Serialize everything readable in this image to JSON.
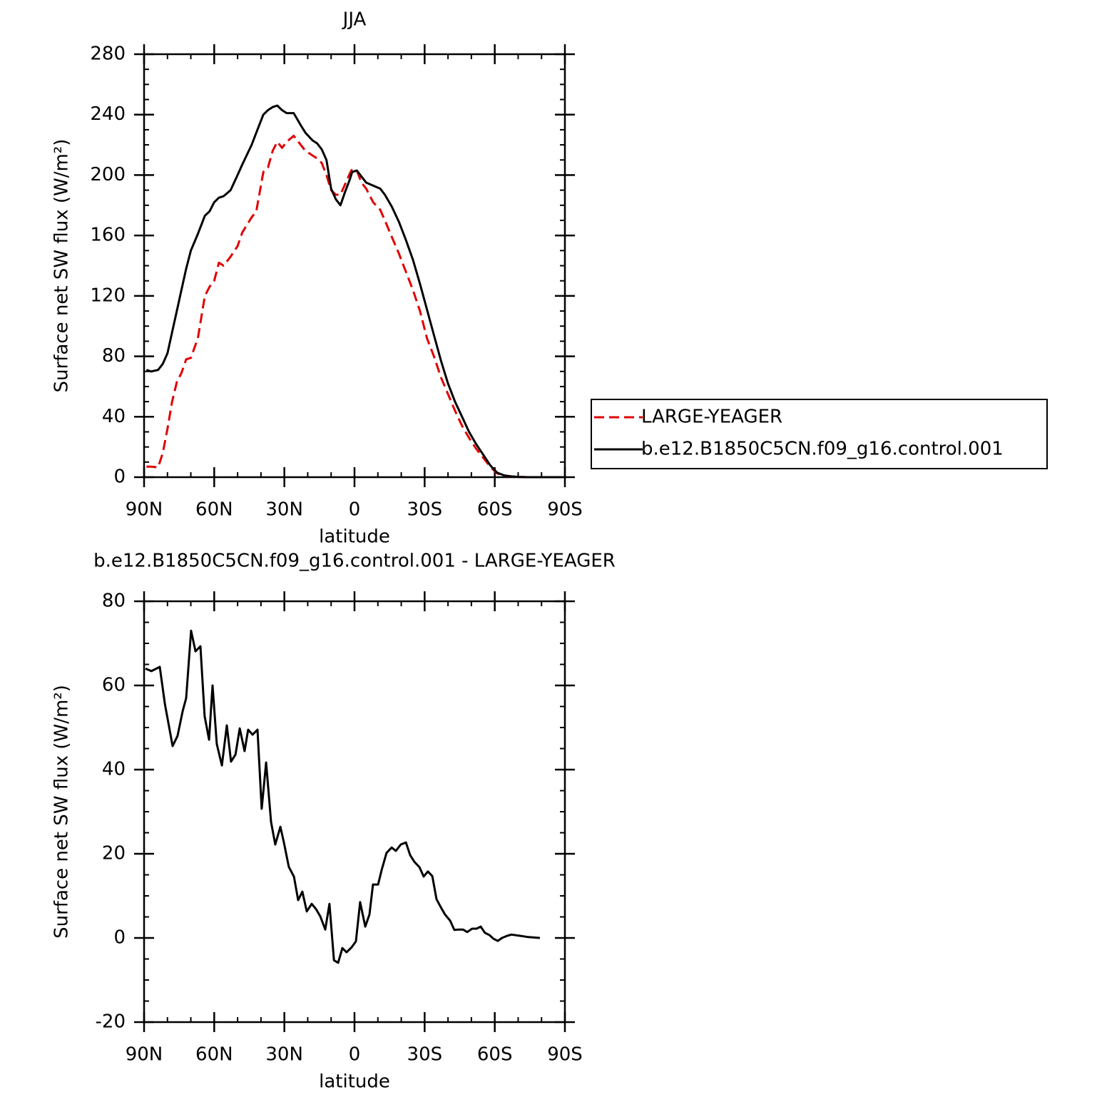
{
  "chart_data": [
    {
      "type": "line",
      "title": "JJA",
      "xlabel": "latitude",
      "ylabel": "Surface net SW flux (W/m²)",
      "xlim": [
        90,
        -90
      ],
      "xticks": [
        {
          "value": 90,
          "label": "90N"
        },
        {
          "value": 60,
          "label": "60N"
        },
        {
          "value": 30,
          "label": "30N"
        },
        0,
        {
          "value": -30,
          "label": "30S"
        },
        {
          "value": -60,
          "label": "60S"
        },
        {
          "value": -90,
          "label": "90S"
        }
      ],
      "xminorticks": [
        80,
        70,
        50,
        40,
        20,
        10,
        -10,
        -20,
        -40,
        -50,
        -70,
        -80
      ],
      "ylim": [
        0,
        280
      ],
      "yticks": [
        0,
        40,
        80,
        120,
        160,
        200,
        240,
        280
      ],
      "yminorticks": [
        10,
        20,
        30,
        50,
        60,
        70,
        90,
        100,
        110,
        130,
        140,
        150,
        170,
        180,
        190,
        210,
        220,
        230,
        250,
        260,
        270
      ],
      "legend": "right",
      "x": [
        89,
        87,
        84,
        82,
        80,
        78,
        76,
        74,
        72,
        70,
        67,
        64,
        62,
        60,
        58,
        56,
        53,
        50,
        48,
        44,
        42,
        39,
        37,
        35,
        33,
        31,
        29,
        26,
        23,
        21,
        18,
        16,
        14,
        12,
        10,
        8,
        6,
        4,
        2,
        1,
        -1,
        -3,
        -5,
        -8,
        -11,
        -13,
        -16,
        -19,
        -22,
        -25,
        -28,
        -31,
        -34,
        -37,
        -40,
        -43,
        -46,
        -49,
        -52,
        -55,
        -58,
        -61,
        -64,
        -67,
        -70,
        -74,
        -80,
        -89
      ],
      "series": [
        {
          "name": "LARGE-YEAGER",
          "color": "#e00000",
          "line_style": "dashed",
          "values": [
            7,
            7,
            6.5,
            16,
            32,
            50,
            63,
            69,
            78,
            79,
            92,
            120,
            126,
            130,
            142,
            140,
            146,
            153,
            162,
            172,
            176,
            202,
            205,
            216,
            222,
            218,
            222,
            226,
            220,
            216,
            213,
            211,
            208,
            200,
            190,
            187,
            187,
            194,
            201,
            204,
            203,
            195,
            191,
            182,
            177,
            170,
            159,
            148,
            136,
            124,
            110,
            92,
            80,
            66,
            55,
            44,
            34,
            26,
            19,
            13,
            7,
            2.5,
            1,
            0.5,
            0.2,
            0,
            0,
            0
          ]
        },
        {
          "name": "b.e12.B1850C5CN.f09_g16.control.001",
          "color": "#000000",
          "line_style": "solid",
          "values": [
            71,
            70,
            71,
            75,
            82,
            96,
            110,
            124,
            138,
            150,
            161,
            173,
            176,
            182,
            185,
            186,
            190,
            200,
            207,
            220,
            228,
            240,
            243,
            245,
            246,
            243,
            241,
            241,
            233,
            228,
            223,
            221,
            217,
            210,
            191,
            184,
            180,
            189,
            197,
            202,
            203,
            199,
            195,
            193,
            191,
            187,
            179,
            169,
            157,
            144,
            128,
            111,
            94,
            77,
            62,
            50,
            40,
            30,
            22,
            15,
            8,
            3,
            1.2,
            0.5,
            0.2,
            0,
            0,
            0
          ]
        }
      ]
    },
    {
      "type": "line",
      "title": "b.e12.B1850C5CN.f09_g16.control.001 - LARGE-YEAGER",
      "xlabel": "latitude",
      "ylabel": "Surface net SW flux (W/m²)",
      "xlim": [
        90,
        -90
      ],
      "xticks": [
        {
          "value": 90,
          "label": "90N"
        },
        {
          "value": 60,
          "label": "60N"
        },
        {
          "value": 30,
          "label": "30N"
        },
        0,
        {
          "value": -30,
          "label": "30S"
        },
        {
          "value": -60,
          "label": "60S"
        },
        {
          "value": -90,
          "label": "90S"
        }
      ],
      "xminorticks": [
        80,
        70,
        50,
        40,
        20,
        10,
        -10,
        -20,
        -40,
        -50,
        -70,
        -80
      ],
      "ylim": [
        -20,
        80
      ],
      "yticks": [
        -20,
        0,
        20,
        40,
        60,
        80
      ],
      "yminorticks": [
        -15,
        -10,
        -5,
        5,
        10,
        15,
        25,
        30,
        35,
        45,
        50,
        55,
        65,
        70,
        75
      ],
      "color": "#000000",
      "x": [
        89.4,
        86.9,
        83.3,
        81.1,
        77.8,
        75.7,
        73.5,
        72,
        69.9,
        68,
        65.9,
        64.1,
        62.2,
        60.7,
        58.9,
        56.7,
        54.6,
        52.8,
        50.9,
        49.1,
        47,
        45.5,
        43.6,
        41.5,
        39.7,
        37.8,
        35.7,
        33.9,
        31.7,
        30.2,
        28.1,
        25.9,
        24.1,
        22.3,
        20.4,
        18.3,
        16.5,
        14.6,
        12.5,
        10.7,
        8.8,
        7,
        5.2,
        3.4,
        1.2,
        -0.6,
        -2.4,
        -4.6,
        -6.4,
        -7.9,
        -10.1,
        -11.6,
        -13.7,
        -15.9,
        -17.7,
        -19.8,
        -22,
        -23.8,
        -25.6,
        -27.8,
        -29.6,
        -31.4,
        -33.3,
        -35.1,
        -36.9,
        -38.7,
        -40.9,
        -42.7,
        -44.5,
        -46.4,
        -48.2,
        -50.3,
        -52.2,
        -54,
        -55.8,
        -57.7,
        -59.5,
        -61.3,
        -63.1,
        -65.3,
        -67.1,
        -70.8,
        -74.4,
        -79.3
      ],
      "values": [
        64,
        63.4,
        64.4,
        55.6,
        45.6,
        48,
        53.9,
        57,
        73,
        68.1,
        69.3,
        52.7,
        47.1,
        60,
        46.1,
        41,
        50.5,
        41.9,
        43.6,
        49.8,
        44.4,
        49.5,
        48.3,
        49.5,
        30.7,
        41.7,
        27.6,
        22.2,
        26.4,
        22.7,
        16.9,
        14.6,
        9,
        11,
        6.3,
        8.1,
        6.9,
        5.1,
        2,
        8.1,
        -5.3,
        -5.9,
        -2.4,
        -3.4,
        -2.2,
        -0.8,
        8.5,
        2.7,
        5.6,
        12.7,
        12.7,
        16.1,
        20.2,
        21.5,
        20.7,
        22.2,
        22.7,
        19.7,
        18.1,
        16.8,
        14.6,
        15.8,
        14.7,
        9.2,
        7.3,
        5.6,
        4.1,
        1.9,
        2,
        2,
        1.4,
        2.2,
        2.2,
        2.7,
        1.2,
        0.7,
        -0.2,
        -0.7,
        0,
        0.5,
        0.8,
        0.5,
        0.2,
        0
      ]
    }
  ]
}
